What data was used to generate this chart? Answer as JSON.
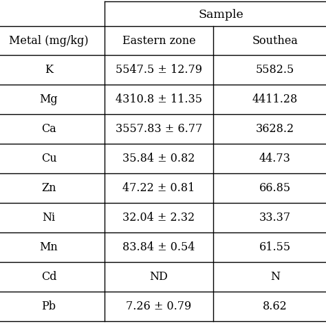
{
  "header_top": "Sample",
  "metal_label": "Metal (mg/kg)",
  "col2_header": "Eastern zone",
  "col3_header": "Southea",
  "rows": [
    [
      "K",
      "5547.5 ± 12.79",
      "5582.5"
    ],
    [
      "Mg",
      "4310.8 ± 11.35",
      "4411.28"
    ],
    [
      "Ca",
      "3557.83 ± 6.77",
      "3628.2"
    ],
    [
      "Cu",
      "35.84 ± 0.82",
      "44.73"
    ],
    [
      "Zn",
      "47.22 ± 0.81",
      "66.85"
    ],
    [
      "Ni",
      "32.04 ± 2.32",
      "33.37"
    ],
    [
      "Mn",
      "83.84 ± 0.54",
      "61.55"
    ],
    [
      "Cd",
      "ND",
      "N"
    ],
    [
      "Pb",
      "7.26 ± 0.79",
      "8.62"
    ]
  ],
  "bg_color": "#ffffff",
  "line_color": "#000000",
  "text_color": "#000000",
  "font_size": 11.5,
  "header_font_size": 12.5
}
